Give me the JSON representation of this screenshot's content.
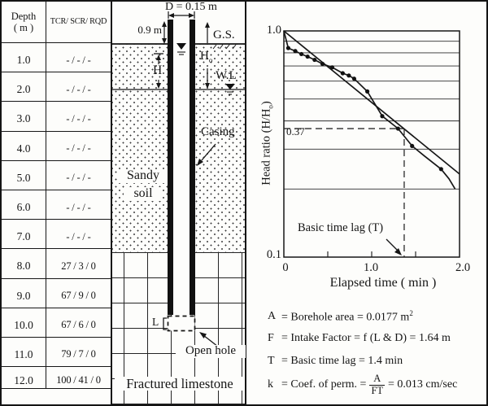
{
  "table": {
    "header": {
      "depth_line1": "Depth",
      "depth_line2": "( m )",
      "values": "TCR/ SCR/ RQD"
    },
    "rows": [
      {
        "depth": "1.0",
        "values": "- / - / -"
      },
      {
        "depth": "2.0",
        "values": "- / - / -"
      },
      {
        "depth": "3.0",
        "values": "- / - / -"
      },
      {
        "depth": "4.0",
        "values": "- / - / -"
      },
      {
        "depth": "5.0",
        "values": "- / - / -"
      },
      {
        "depth": "6.0",
        "values": "- / - / -"
      },
      {
        "depth": "7.0",
        "values": "- / - / -"
      },
      {
        "depth": "8.0",
        "values": "27 / 3 / 0"
      },
      {
        "depth": "9.0",
        "values": "67 / 9 / 0"
      },
      {
        "depth": "10.0",
        "values": "67 / 6 / 0"
      },
      {
        "depth": "11.0",
        "values": "79 / 7 / 0"
      },
      {
        "depth": "12.0",
        "values": "100 / 41 / 0"
      }
    ]
  },
  "diagram": {
    "labels": {
      "diameter": "D = 0.15 m",
      "stickup": "0.9 m",
      "ground_surface": "G.S.",
      "head_base": "H",
      "head0_base": "H",
      "head0_sub": "o",
      "water_level": "W.L",
      "casing": "Casing",
      "soil_line1": "Sandy",
      "soil_line2": "soil",
      "open_hole_length": "L",
      "open_hole": "Open hole",
      "rock_name": "Fractured limestone"
    }
  },
  "chart_data": {
    "type": "line",
    "title": "",
    "xlabel": "Elapsed time ( min )",
    "ylabel": "Head ratio (H/H₀)",
    "ylabel_parts": {
      "pre": "Head ratio (H/H",
      "sub": "o",
      "post": ")"
    },
    "x_range": [
      0,
      2.0
    ],
    "y_range": [
      0.1,
      1.0
    ],
    "y_scale": "log",
    "grid": "horizontal-only",
    "y_gridlines": [
      0.2,
      0.3,
      0.4,
      0.5,
      0.6,
      0.7,
      0.8,
      0.9
    ],
    "x_minor_ticks": [
      0.5,
      1.0,
      1.5
    ],
    "x_tick_labels": [
      {
        "value": 0,
        "label": "0"
      },
      {
        "value": 1.0,
        "label": "1.0"
      },
      {
        "value": 2.0,
        "label": "2.0"
      }
    ],
    "y_axis_labels": {
      "top": "1.0",
      "bottom": "0.1"
    },
    "series": [
      {
        "name": "observed-head-ratio",
        "points": [
          [
            0.0,
            1.0,
            0
          ],
          [
            0.05,
            0.84,
            1
          ],
          [
            0.13,
            0.815,
            1
          ],
          [
            0.2,
            0.79,
            1
          ],
          [
            0.27,
            0.77,
            1
          ],
          [
            0.35,
            0.745,
            1
          ],
          [
            0.44,
            0.715,
            1
          ],
          [
            0.55,
            0.69,
            1
          ],
          [
            0.67,
            0.65,
            1
          ],
          [
            0.74,
            0.635,
            1
          ],
          [
            0.8,
            0.615,
            1
          ],
          [
            0.95,
            0.54,
            1
          ],
          [
            1.12,
            0.42,
            1
          ],
          [
            1.3,
            0.37,
            1
          ],
          [
            1.46,
            0.31,
            1
          ],
          [
            1.6,
            0.28,
            0
          ],
          [
            1.79,
            0.245,
            1
          ],
          [
            1.88,
            0.222,
            0
          ],
          [
            1.95,
            0.2,
            0
          ]
        ]
      },
      {
        "name": "log-linear-fit",
        "points": [
          [
            0,
            1.0,
            0
          ],
          [
            2.0,
            0.233,
            0
          ]
        ]
      }
    ],
    "guides": {
      "head_ratio": 0.37,
      "time_min": 1.37,
      "label": "0.37"
    },
    "annotation": {
      "text": "Basic time lag (T)"
    }
  },
  "formulas": {
    "rows": [
      {
        "sym": "A",
        "body": "= Borehole area = 0.0177 m",
        "sup": "2"
      },
      {
        "sym": "F",
        "body": "= Intake Factor = f (L & D) = 1.64 m"
      },
      {
        "sym": "T",
        "body": "= Basic time lag = 1.4 min"
      },
      {
        "sym": "k",
        "pre": "= Coef. of perm. = ",
        "num": "A",
        "den": "FT",
        "post": " = 0.013 cm/sec"
      }
    ]
  }
}
